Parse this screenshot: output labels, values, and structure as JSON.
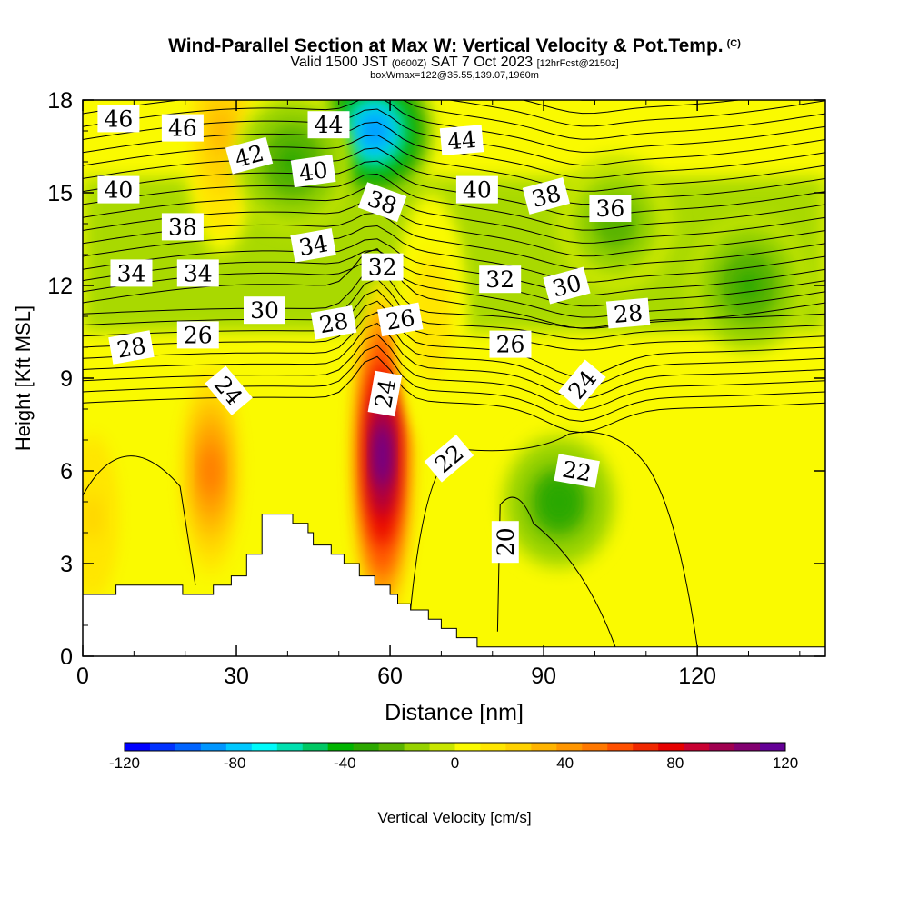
{
  "header": {
    "title": "Wind-Parallel Section at Max W: Vertical Velocity & Pot.Temp.",
    "copyright": "(C)",
    "valid_prefix": "Valid 1500 JST",
    "valid_utc": "(0600Z)",
    "valid_date": "SAT 7 Oct 2023",
    "forecast_info": "[12hrFcst@2150z]",
    "box_info": "boxWmax=122@35.55,139.07,1960m"
  },
  "chart_data": {
    "type": "heatmap",
    "xlabel": "Distance [nm]",
    "ylabel": "Height [Kft MSL]",
    "xlim": [
      0,
      145
    ],
    "ylim": [
      0,
      18
    ],
    "xticks": [
      0,
      30,
      60,
      90,
      120
    ],
    "yticks": [
      0,
      3,
      6,
      9,
      12,
      15,
      18
    ],
    "colorbar": {
      "label": "Vertical Velocity [cm/s]",
      "range": [
        -120,
        120
      ],
      "ticks": [
        -120,
        -80,
        -40,
        0,
        40,
        80,
        120
      ],
      "colors": [
        "#0000ff",
        "#0032ff",
        "#0064ff",
        "#0096ff",
        "#00c8ff",
        "#00fafa",
        "#00e0b0",
        "#00c864",
        "#00b400",
        "#2ca800",
        "#5ab400",
        "#96d200",
        "#c8e600",
        "#fafa00",
        "#ffe600",
        "#ffd200",
        "#ffb400",
        "#ff9600",
        "#ff7800",
        "#ff5000",
        "#f02800",
        "#e60000",
        "#c80032",
        "#a00050",
        "#820070",
        "#640096"
      ]
    },
    "w_features": [
      {
        "kind": "updraft",
        "x": 25,
        "y": 6,
        "w_max": 55
      },
      {
        "kind": "updraft",
        "x": 58.5,
        "y": 6.5,
        "w_max": 122
      },
      {
        "kind": "updraft",
        "x": 68,
        "y": 11,
        "w_max": 15
      },
      {
        "kind": "updraft",
        "x": 27,
        "y": 17,
        "w_max": 30
      },
      {
        "kind": "updraft",
        "x": 2,
        "y": 4.5,
        "w_max": 20
      },
      {
        "kind": "downdraft",
        "x": 57,
        "y": 17,
        "w_min": -90
      },
      {
        "kind": "downdraft",
        "x": 93,
        "y": 5,
        "w_min": -35
      },
      {
        "kind": "downdraft",
        "x": 104,
        "y": 14,
        "w_min": -25
      },
      {
        "kind": "downdraft",
        "x": 130,
        "y": 12,
        "w_min": -30
      },
      {
        "kind": "downdraft",
        "x": 41,
        "y": 16,
        "w_min": -30
      }
    ],
    "theta_labels": [
      {
        "value": "46",
        "x": 7,
        "y": 17.4,
        "angle": 0
      },
      {
        "value": "46",
        "x": 19.5,
        "y": 17.1,
        "angle": 0
      },
      {
        "value": "44",
        "x": 48,
        "y": 17.2,
        "angle": 0
      },
      {
        "value": "44",
        "x": 74,
        "y": 16.7,
        "angle": -5
      },
      {
        "value": "42",
        "x": 32.5,
        "y": 16.2,
        "angle": -15
      },
      {
        "value": "40",
        "x": 7,
        "y": 15.1,
        "angle": 0
      },
      {
        "value": "40",
        "x": 45,
        "y": 15.7,
        "angle": -8
      },
      {
        "value": "40",
        "x": 77,
        "y": 15.1,
        "angle": 0
      },
      {
        "value": "38",
        "x": 19.5,
        "y": 13.9,
        "angle": 0
      },
      {
        "value": "38",
        "x": 58.5,
        "y": 14.7,
        "angle": 20
      },
      {
        "value": "38",
        "x": 90.5,
        "y": 14.9,
        "angle": -15
      },
      {
        "value": "36",
        "x": 103,
        "y": 14.5,
        "angle": 0
      },
      {
        "value": "34",
        "x": 9.5,
        "y": 12.4,
        "angle": 0
      },
      {
        "value": "34",
        "x": 22.5,
        "y": 12.4,
        "angle": 0
      },
      {
        "value": "34",
        "x": 45,
        "y": 13.3,
        "angle": -10
      },
      {
        "value": "32",
        "x": 58.5,
        "y": 12.6,
        "angle": 0
      },
      {
        "value": "32",
        "x": 81.5,
        "y": 12.2,
        "angle": 0
      },
      {
        "value": "30",
        "x": 35.5,
        "y": 11.2,
        "angle": 0
      },
      {
        "value": "30",
        "x": 94.5,
        "y": 12.0,
        "angle": -15
      },
      {
        "value": "28",
        "x": 49,
        "y": 10.8,
        "angle": -10
      },
      {
        "value": "28",
        "x": 106.5,
        "y": 11.1,
        "angle": -5
      },
      {
        "value": "28",
        "x": 9.5,
        "y": 10.0,
        "angle": -10
      },
      {
        "value": "26",
        "x": 22.5,
        "y": 10.4,
        "angle": 0
      },
      {
        "value": "26",
        "x": 62,
        "y": 10.9,
        "angle": -10
      },
      {
        "value": "26",
        "x": 83.5,
        "y": 10.1,
        "angle": 0
      },
      {
        "value": "24",
        "x": 28.5,
        "y": 8.6,
        "angle": 50
      },
      {
        "value": "24",
        "x": 59,
        "y": 8.5,
        "angle": -80
      },
      {
        "value": "24",
        "x": 97.5,
        "y": 8.8,
        "angle": -50
      },
      {
        "value": "22",
        "x": 71.5,
        "y": 6.4,
        "angle": -40
      },
      {
        "value": "22",
        "x": 96.5,
        "y": 6.0,
        "angle": 10
      },
      {
        "value": "20",
        "x": 82.5,
        "y": 3.7,
        "angle": -90
      }
    ],
    "terrain": [
      [
        0,
        2.0
      ],
      [
        6.5,
        2.0
      ],
      [
        6.5,
        2.3
      ],
      [
        19.5,
        2.3
      ],
      [
        19.5,
        2.0
      ],
      [
        25.5,
        2.0
      ],
      [
        25.5,
        2.3
      ],
      [
        29,
        2.3
      ],
      [
        29,
        2.6
      ],
      [
        32,
        2.6
      ],
      [
        32,
        2.9
      ],
      [
        32,
        3.3
      ],
      [
        35,
        3.3
      ],
      [
        35,
        4.6
      ],
      [
        41,
        4.6
      ],
      [
        41,
        4.3
      ],
      [
        44,
        4.3
      ],
      [
        44,
        4.0
      ],
      [
        45,
        4.0
      ],
      [
        45,
        3.6
      ],
      [
        48.5,
        3.6
      ],
      [
        48.5,
        3.3
      ],
      [
        51,
        3.3
      ],
      [
        51,
        3.0
      ],
      [
        54,
        3.0
      ],
      [
        54,
        2.6
      ],
      [
        57,
        2.6
      ],
      [
        57,
        2.3
      ],
      [
        60,
        2.3
      ],
      [
        60,
        2.0
      ],
      [
        61.5,
        2.0
      ],
      [
        61.5,
        1.7
      ],
      [
        64,
        1.7
      ],
      [
        64,
        1.5
      ],
      [
        67.5,
        1.5
      ],
      [
        67.5,
        1.2
      ],
      [
        70,
        1.2
      ],
      [
        70,
        0.9
      ],
      [
        73,
        0.9
      ],
      [
        73,
        0.6
      ],
      [
        77,
        0.6
      ],
      [
        77,
        0.3
      ],
      [
        145,
        0.3
      ],
      [
        145,
        0
      ],
      [
        0,
        0
      ]
    ]
  }
}
